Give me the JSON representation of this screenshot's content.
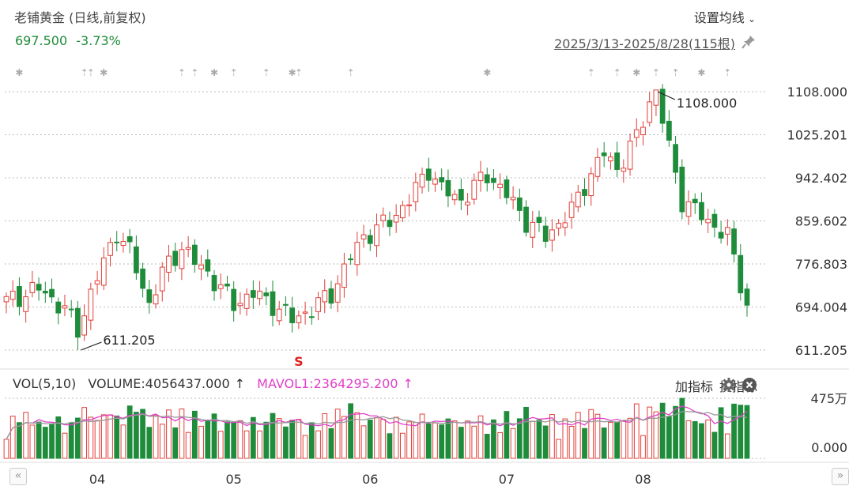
{
  "header": {
    "title": "老铺黄金 (日线,前复权)",
    "price": "697.500",
    "change": "-3.73%",
    "settings_label": "设置均线",
    "date_range": "2025/3/13-2025/8/28(115根)"
  },
  "chart_data": {
    "type": "candlestick",
    "ylim": [
      580,
      1130
    ],
    "y_ticks": [
      "1108.000",
      "1025.201",
      "942.402",
      "859.602",
      "776.803",
      "694.004",
      "611.205"
    ],
    "x_ticks": [
      "04",
      "05",
      "06",
      "07",
      "08"
    ],
    "max_label": "1108.000",
    "min_label": "611.205",
    "signal_label": "S",
    "up_color": "#e0403a",
    "down_color": "#1e8c3a",
    "candles": [],
    "volume_panel": {
      "label": "VOL(5,10)",
      "volume_text": "VOLUME:4056437.000",
      "mavol_text": "MAVOL1:2364295.200",
      "y_top": "475万",
      "y_bottom": "0.000",
      "ma5_color": "#e040c8",
      "ma10_color": "#999999"
    }
  },
  "volume_tools": {
    "add_indicator": "加指标",
    "change_indicator": "换指标"
  }
}
